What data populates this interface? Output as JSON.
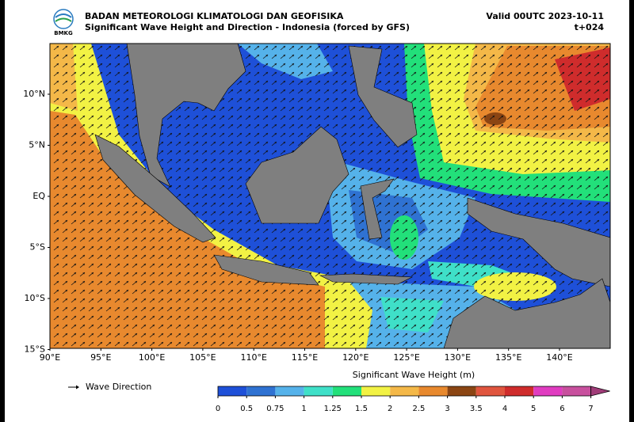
{
  "header": {
    "logo": "BMKG",
    "agency": "BADAN METEOROLOGI KLIMATOLOGI DAN GEOFISIKA",
    "title": "Significant Wave Height and Direction - Indonesia (forced by GFS)",
    "valid": "Valid 00UTC 2023-10-11",
    "lead": "t+024"
  },
  "map": {
    "lat_labels": [
      "10°N",
      "5°N",
      "EQ",
      "5°S",
      "10°S",
      "15°S"
    ],
    "lon_labels": [
      "90°E",
      "95°E",
      "100°E",
      "105°E",
      "110°E",
      "115°E",
      "120°E",
      "125°E",
      "130°E",
      "135°E",
      "140°E"
    ]
  },
  "legend": {
    "arrow_label": "Wave Direction"
  },
  "colorbar": {
    "title": "Significant Wave Height (m)",
    "ticks": [
      0,
      0.5,
      0.75,
      1,
      1.25,
      1.5,
      2,
      2.5,
      3,
      3.5,
      4,
      5,
      6,
      7
    ],
    "colors": [
      "#1e50d8",
      "#2f72d2",
      "#55b2ea",
      "#3fe0c8",
      "#22e07a",
      "#f2f244",
      "#f4b848",
      "#e8892e",
      "#8b4513",
      "#e0553e",
      "#cf2c2c",
      "#e03cc0",
      "#c8509e",
      "#a03c78"
    ]
  }
}
